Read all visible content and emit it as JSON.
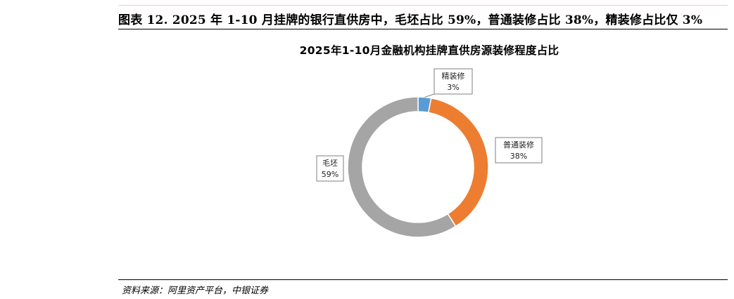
{
  "figure": {
    "title": "图表 12. 2025 年 1-10 月挂牌的银行直供房中，毛坯占比 59%，普通装修占比 38%，精装修占比仅 3%",
    "source": "资料来源：阿里资产平台，中银证券"
  },
  "chart_data": {
    "type": "pie",
    "style": "donut",
    "title": "2025年1-10月金融机构挂牌直供房源装修程度占比",
    "legend": "none",
    "slices": [
      {
        "label": "精装修",
        "value": 3,
        "value_label": "3%",
        "color": "#5b9bd5"
      },
      {
        "label": "普通装修",
        "value": 38,
        "value_label": "38%",
        "color": "#ed7d31"
      },
      {
        "label": "毛坯",
        "value": 59,
        "value_label": "59%",
        "color": "#a5a5a5"
      }
    ]
  }
}
